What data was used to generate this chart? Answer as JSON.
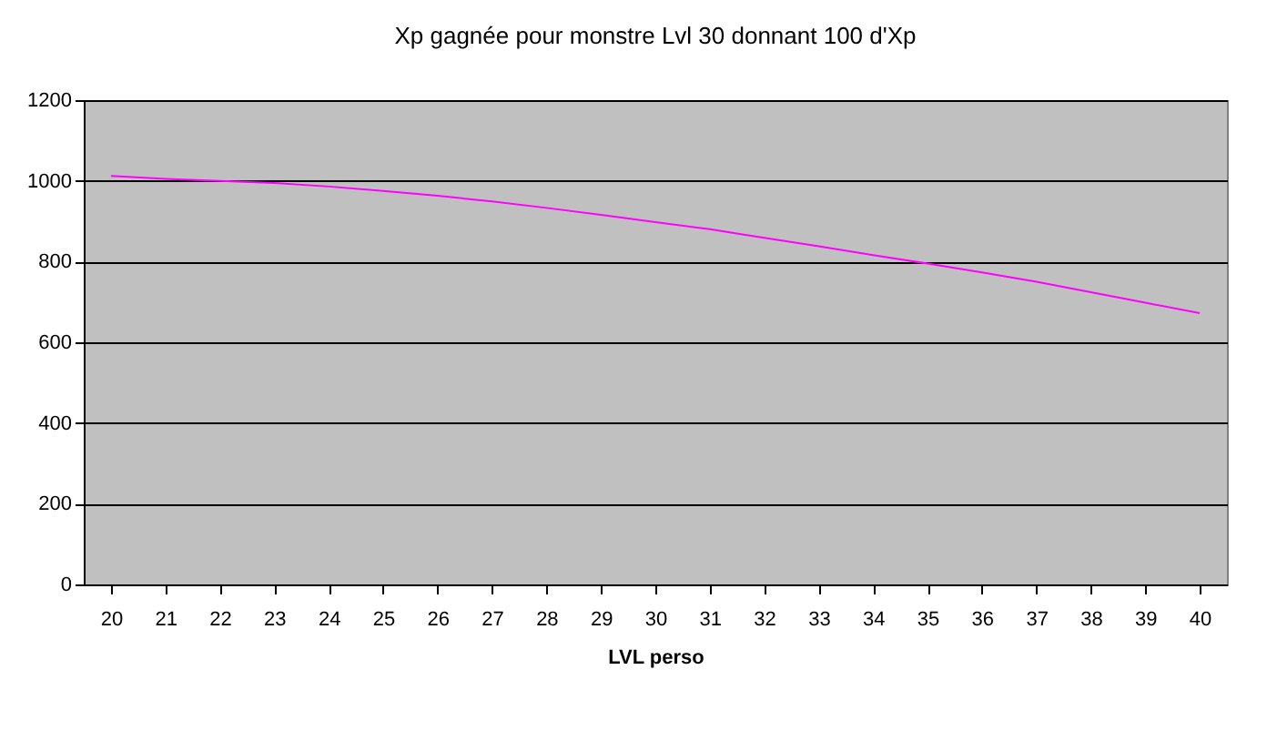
{
  "chart_data": {
    "type": "line",
    "title": "Xp gagnée pour monstre Lvl 30 donnant 100 d'Xp",
    "xlabel": "LVL perso",
    "categories": [
      "20",
      "21",
      "22",
      "23",
      "24",
      "25",
      "26",
      "27",
      "28",
      "29",
      "30",
      "31",
      "32",
      "33",
      "34",
      "35",
      "36",
      "37",
      "38",
      "39",
      "40"
    ],
    "series": [
      {
        "color": "#ff00ff",
        "values": [
          1012,
          1005,
          1000,
          995,
          986,
          975,
          963,
          949,
          933,
          916,
          898,
          880,
          859,
          838,
          816,
          795,
          773,
          750,
          724,
          698,
          672
        ]
      }
    ],
    "ylim": [
      0,
      1200
    ],
    "yticks": [
      0,
      200,
      400,
      600,
      800,
      1000,
      1200
    ],
    "grid": "y",
    "marker": "none",
    "line_style": "solid"
  }
}
